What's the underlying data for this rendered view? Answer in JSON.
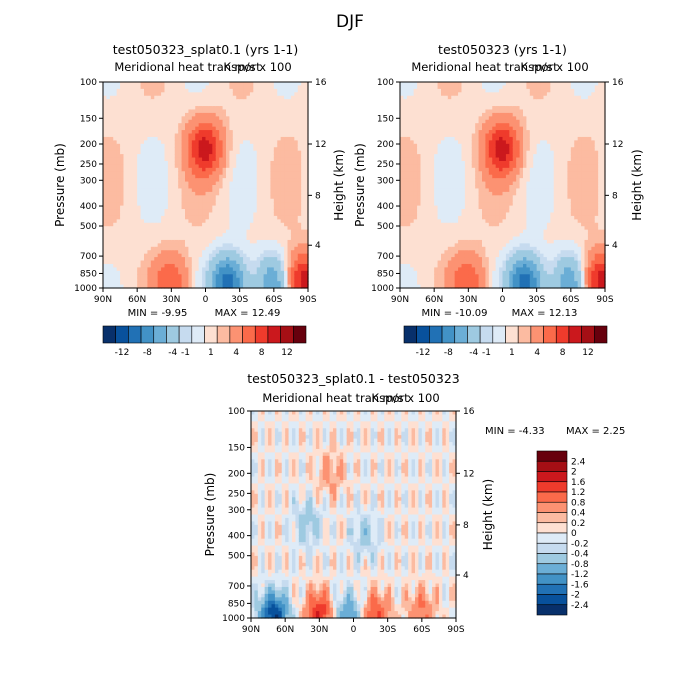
{
  "figure": {
    "season_title": "DJF"
  },
  "chart_data": [
    {
      "type": "heatmap",
      "title": "test050323_splat0.1 (yrs 1-1)",
      "subtitle": "Meridional heat transport",
      "units": "K m/s x 100",
      "ylabel": "Pressure (mb)",
      "y2label": "Height (km)",
      "x_ticks": [
        "90N",
        "60N",
        "30N",
        "0",
        "30S",
        "60S",
        "90S"
      ],
      "y_ticks": [
        "100",
        "150",
        "200",
        "250",
        "300",
        "400",
        "500",
        "700",
        "850",
        "1000"
      ],
      "y2_ticks": [
        "16",
        "12",
        "8",
        "4"
      ],
      "min_text": "MIN =  -9.95",
      "max_text": "MAX =  12.49",
      "min": -9.95,
      "max": 12.49,
      "colorbar_labels": [
        "-12",
        "-8",
        "-4",
        "-1",
        "1",
        "4",
        "8",
        "12"
      ],
      "features": [
        {
          "lat": 0,
          "p": 210,
          "value": 8
        },
        {
          "lat": -20,
          "p": 950,
          "value": -10
        },
        {
          "lat": 30,
          "p": 930,
          "value": 5
        },
        {
          "lat": -60,
          "p": 930,
          "value": -6
        },
        {
          "lat": -85,
          "p": 920,
          "value": 9
        }
      ]
    },
    {
      "type": "heatmap",
      "title": "test050323 (yrs 1-1)",
      "subtitle": "Meridional heat transport",
      "units": "K m/s x 100",
      "ylabel": "Pressure (mb)",
      "y2label": "Height (km)",
      "x_ticks": [
        "90N",
        "60N",
        "30N",
        "0",
        "30S",
        "60S",
        "90S"
      ],
      "y_ticks": [
        "100",
        "150",
        "200",
        "250",
        "300",
        "400",
        "500",
        "700",
        "850",
        "1000"
      ],
      "y2_ticks": [
        "16",
        "12",
        "8",
        "4"
      ],
      "min_text": "MIN = -10.09",
      "max_text": "MAX =  12.13",
      "min": -10.09,
      "max": 12.13,
      "colorbar_labels": [
        "-12",
        "-8",
        "-4",
        "-1",
        "1",
        "4",
        "8",
        "12"
      ],
      "features": [
        {
          "lat": 0,
          "p": 210,
          "value": 8
        },
        {
          "lat": -20,
          "p": 950,
          "value": -10
        },
        {
          "lat": 30,
          "p": 930,
          "value": 5
        },
        {
          "lat": -60,
          "p": 930,
          "value": -6
        },
        {
          "lat": -85,
          "p": 920,
          "value": 9
        }
      ]
    },
    {
      "type": "heatmap",
      "title": "test050323_splat0.1 - test050323",
      "subtitle": "Meridional heat transport",
      "units": "K m/s x 100",
      "ylabel": "Pressure (mb)",
      "y2label": "Height (km)",
      "x_ticks": [
        "90N",
        "60N",
        "30N",
        "0",
        "30S",
        "60S",
        "90S"
      ],
      "y_ticks": [
        "100",
        "150",
        "200",
        "250",
        "300",
        "400",
        "500",
        "700",
        "850",
        "1000"
      ],
      "y2_ticks": [
        "16",
        "12",
        "8",
        "4"
      ],
      "min_text": "MIN =  -4.33",
      "max_text": "MAX =   2.25",
      "min": -4.33,
      "max": 2.25,
      "colorbar_labels": [
        "2.4",
        "2",
        "1.6",
        "1.2",
        "0.8",
        "0.4",
        "0.2",
        "0",
        "-0.2",
        "-0.4",
        "-0.8",
        "-1.2",
        "-1.6",
        "-2",
        "-2.4"
      ],
      "features": [
        {
          "lat": 70,
          "p": 970,
          "value": -2.4
        },
        {
          "lat": 30,
          "p": 960,
          "value": 1.6
        },
        {
          "lat": 5,
          "p": 980,
          "value": -1.2
        },
        {
          "lat": -20,
          "p": 970,
          "value": 1.2
        },
        {
          "lat": -60,
          "p": 920,
          "value": 0.8
        },
        {
          "lat": 40,
          "p": 350,
          "value": -0.6
        },
        {
          "lat": 20,
          "p": 200,
          "value": 0.5
        },
        {
          "lat": -10,
          "p": 400,
          "value": -0.5
        }
      ]
    }
  ],
  "palettes": {
    "panel": [
      "#08306b",
      "#08519c",
      "#2171b5",
      "#4292c6",
      "#6baed6",
      "#9ecae1",
      "#c6dbef",
      "#deebf7",
      "#fde0d2",
      "#fcbba1",
      "#fc9272",
      "#fb6a4a",
      "#ef3b2c",
      "#cb181d",
      "#a50f15",
      "#67000d"
    ],
    "diff": [
      "#08306b",
      "#08519c",
      "#2171b5",
      "#4292c6",
      "#6baed6",
      "#9ecae1",
      "#c6dbef",
      "#deebf7",
      "#fee0d2",
      "#fcbba1",
      "#fc9272",
      "#fb6a4a",
      "#ef3b2c",
      "#cb181d",
      "#a50f15",
      "#67000d"
    ]
  }
}
